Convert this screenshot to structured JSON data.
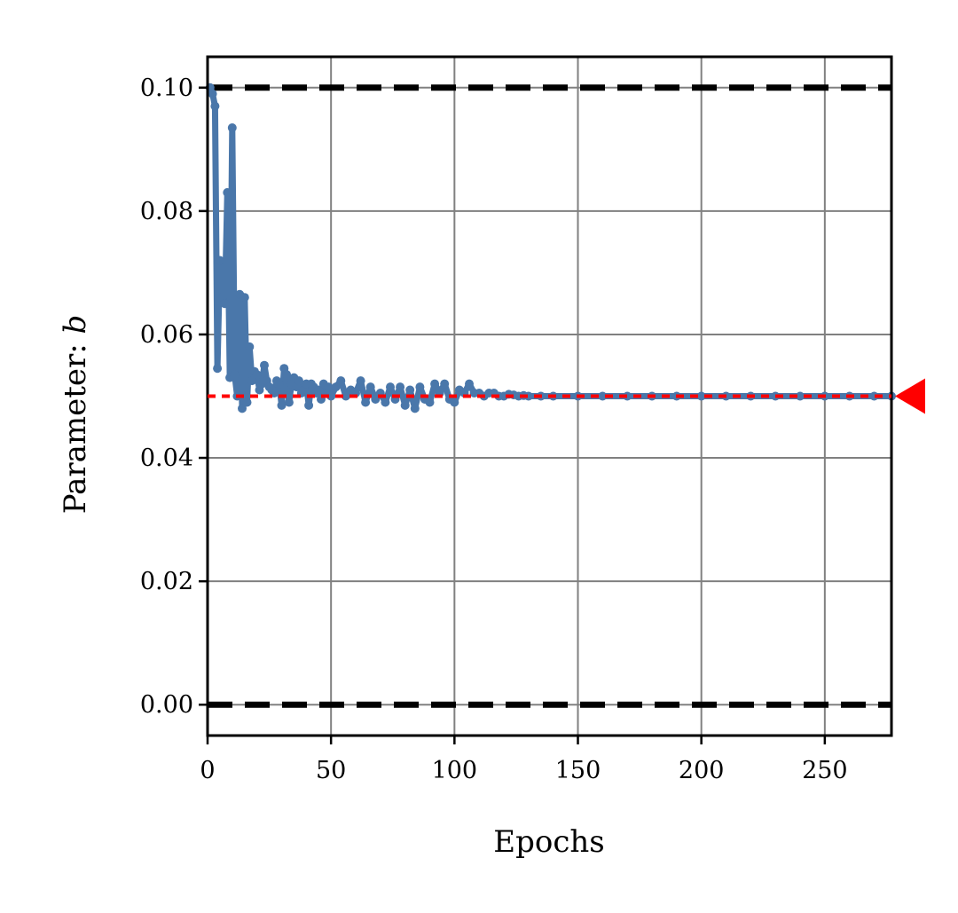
{
  "chart_data": {
    "type": "line",
    "xlabel": "Epochs",
    "ylabel": "Parameter: ",
    "ylabel_symbol": "b",
    "xlim": [
      0,
      277
    ],
    "ylim": [
      -0.005,
      0.105
    ],
    "xticks": [
      "0",
      "50",
      "100",
      "150",
      "200",
      "250"
    ],
    "yticks": [
      "0.00",
      "0.02",
      "0.04",
      "0.06",
      "0.08",
      "0.10"
    ],
    "grid": true,
    "bounds": {
      "upper": 0.1,
      "lower": 0.0,
      "style": "black dashed"
    },
    "target": {
      "value": 0.05,
      "style": "red dotted",
      "marker": "red triangle at right edge"
    },
    "series": [
      {
        "color": "#4a77aa",
        "x": [
          1,
          2,
          3,
          4,
          5,
          6,
          7,
          8,
          9,
          10,
          11,
          12,
          13,
          14,
          15,
          16,
          17,
          18,
          19,
          20,
          21,
          22,
          23,
          24,
          25,
          26,
          27,
          28,
          29,
          30,
          31,
          32,
          33,
          34,
          35,
          36,
          37,
          38,
          39,
          40,
          41,
          42,
          43,
          44,
          45,
          46,
          47,
          48,
          49,
          50,
          52,
          54,
          56,
          58,
          60,
          62,
          64,
          66,
          68,
          70,
          72,
          74,
          76,
          78,
          80,
          82,
          84,
          86,
          88,
          90,
          92,
          94,
          96,
          98,
          100,
          102,
          104,
          106,
          108,
          110,
          112,
          114,
          116,
          118,
          120,
          122,
          124,
          126,
          128,
          130,
          135,
          140,
          150,
          160,
          170,
          180,
          190,
          200,
          210,
          220,
          230,
          240,
          250,
          260,
          270,
          277
        ],
        "y": [
          0.1,
          0.099,
          0.097,
          0.0545,
          0.072,
          0.066,
          0.065,
          0.083,
          0.053,
          0.0935,
          0.0535,
          0.05,
          0.0665,
          0.048,
          0.066,
          0.049,
          0.058,
          0.0525,
          0.054,
          0.0535,
          0.051,
          0.052,
          0.055,
          0.0525,
          0.0515,
          0.051,
          0.0505,
          0.0525,
          0.052,
          0.0485,
          0.0545,
          0.0535,
          0.049,
          0.052,
          0.053,
          0.0515,
          0.0525,
          0.0505,
          0.051,
          0.052,
          0.0485,
          0.052,
          0.0515,
          0.0505,
          0.051,
          0.0495,
          0.052,
          0.0505,
          0.0515,
          0.05,
          0.0515,
          0.0525,
          0.05,
          0.051,
          0.0505,
          0.0525,
          0.049,
          0.0515,
          0.0495,
          0.0505,
          0.049,
          0.0515,
          0.0495,
          0.0515,
          0.0485,
          0.051,
          0.048,
          0.0515,
          0.0495,
          0.049,
          0.052,
          0.0505,
          0.052,
          0.0495,
          0.049,
          0.051,
          0.0505,
          0.052,
          0.0505,
          0.0505,
          0.05,
          0.0505,
          0.0505,
          0.05,
          0.05,
          0.0503,
          0.0502,
          0.05,
          0.0501,
          0.05,
          0.05,
          0.05,
          0.05,
          0.05,
          0.05,
          0.05,
          0.05,
          0.05,
          0.05,
          0.05,
          0.05,
          0.05,
          0.05,
          0.05,
          0.05,
          0.05
        ]
      }
    ]
  }
}
